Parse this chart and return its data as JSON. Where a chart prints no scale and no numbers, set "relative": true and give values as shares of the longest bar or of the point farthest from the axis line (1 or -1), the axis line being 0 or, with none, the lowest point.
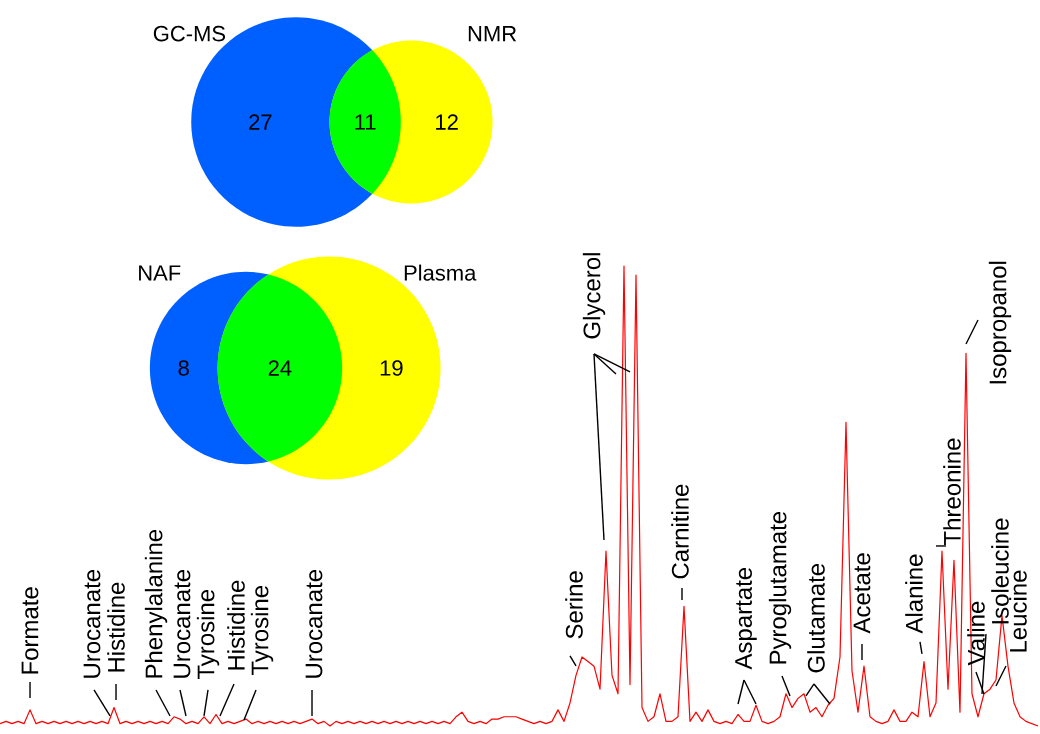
{
  "chart_data": [
    {
      "type": "other",
      "categories": [
        "GC-MS",
        null,
        "NMR"
      ],
      "values": [
        27,
        11,
        12
      ],
      "colors": [
        "#0060ff",
        "#00ff00",
        "#ffff00"
      ],
      "data_labels": true
    },
    {
      "type": "other",
      "categories": [
        "NAF",
        null,
        "Plasma"
      ],
      "values": [
        8,
        24,
        19
      ],
      "colors": [
        "#0060ff",
        "#00ff00",
        "#ffff00"
      ],
      "data_labels": true
    },
    {
      "type": "line",
      "relative": true,
      "color": "#ff0000",
      "categories": [
        null,
        null,
        null,
        null,
        null,
        null,
        null,
        null,
        null,
        null,
        null,
        null,
        null,
        null,
        null,
        null,
        null,
        null,
        null,
        null,
        null,
        null,
        null,
        null,
        null,
        null,
        null,
        null,
        null,
        null,
        null,
        null,
        null,
        null,
        null,
        null,
        null,
        null,
        null,
        null,
        null,
        null,
        null,
        null,
        null,
        null,
        null,
        null,
        null,
        null,
        null,
        null,
        null,
        null,
        null,
        null,
        null,
        null,
        null,
        null,
        null,
        null,
        null,
        null,
        null,
        null,
        null,
        null,
        null,
        null,
        null,
        null,
        null,
        null,
        null,
        null,
        null,
        null,
        null,
        null,
        null,
        null,
        null,
        null,
        null,
        null,
        null,
        null,
        null,
        null,
        null,
        null,
        null,
        null,
        null,
        null,
        null,
        null,
        null,
        null,
        null,
        null,
        null,
        null,
        null,
        null,
        null,
        null,
        null,
        null,
        null,
        null,
        null,
        null,
        null,
        null,
        null,
        null,
        null,
        null,
        null,
        null,
        null,
        null,
        null,
        null,
        null,
        null,
        null,
        null,
        null,
        null,
        null,
        null,
        null,
        null,
        null,
        null,
        null,
        null,
        null,
        null,
        null,
        null,
        null,
        null,
        null,
        null,
        null,
        null,
        null,
        null,
        null,
        null,
        null,
        null,
        null,
        null,
        null,
        null,
        null,
        null,
        null,
        null,
        null,
        null,
        null,
        null,
        null,
        null,
        null,
        null,
        null,
        null
      ],
      "values": [
        0.005,
        0.01,
        0.005,
        0.01,
        0.005,
        0.035,
        0.005,
        0.01,
        0.005,
        0.01,
        0.005,
        0.01,
        0.005,
        0.01,
        0.005,
        0.01,
        0.005,
        0.01,
        0.005,
        0.04,
        0.005,
        0.01,
        0.005,
        0.01,
        0.005,
        0.01,
        0.005,
        0.01,
        0.005,
        0.02,
        0.015,
        0.005,
        0.01,
        0.005,
        0.02,
        0.005,
        0.025,
        0.005,
        0.01,
        0.005,
        0.01,
        0.015,
        0.005,
        0.01,
        0.005,
        0.01,
        0.005,
        0.01,
        0.005,
        0.01,
        0.005,
        0.01,
        0.015,
        0.005,
        0.01,
        0,
        0.01,
        0.005,
        0.01,
        0.005,
        0.01,
        0.005,
        0.01,
        0.005,
        0.01,
        0.005,
        0.01,
        0.005,
        0.01,
        0.005,
        0.01,
        0.005,
        0.01,
        0.005,
        0.01,
        0.005,
        0.02,
        0.03,
        0.01,
        0.005,
        0.01,
        0.005,
        0.015,
        0.015,
        0.02,
        0.02,
        0.02,
        0.015,
        0.01,
        0.005,
        0.01,
        0.005,
        0.01,
        0.035,
        0.01,
        0.05,
        0.11,
        0.15,
        0.14,
        0.13,
        0.08,
        0.38,
        0.11,
        0.07,
        1,
        0.09,
        0.98,
        0.04,
        0.01,
        0.02,
        0.07,
        0.01,
        0.01,
        0.02,
        0.26,
        0.01,
        0.03,
        0.01,
        0.035,
        0.01,
        0.005,
        0.01,
        0.005,
        0.025,
        0.01,
        0.01,
        0.045,
        0.01,
        0.005,
        0.01,
        0.02,
        0.07,
        0.04,
        0.06,
        0.07,
        0.03,
        0.04,
        0.02,
        0.045,
        0.06,
        0.15,
        0.66,
        0.12,
        0.03,
        0.13,
        0.02,
        0.01,
        0.005,
        0.01,
        0.035,
        0.01,
        0.01,
        0.03,
        0.02,
        0.14,
        0.02,
        0.05,
        0.38,
        0.08,
        0.36,
        0.03,
        0.81,
        0.07,
        0.02,
        0.07,
        0.08,
        0.1,
        0.24,
        0.13,
        0.05,
        0.02,
        0.01,
        0.005,
        0
      ],
      "annotations": [
        "Formate",
        "Urocanate",
        "Histidine",
        "Phenylalanine",
        "Urocanate",
        "Tyrosine",
        "Histidine",
        "Tyrosine",
        "Urocanate",
        "Serine",
        "Glycerol",
        "Carnitine",
        "Aspartate",
        "Pyroglutamate",
        "Glutamate",
        "Acetate",
        "Alanine",
        "Threonine",
        "Isopropanol",
        "Valine",
        "Isoleucine",
        "Leucine"
      ]
    }
  ]
}
